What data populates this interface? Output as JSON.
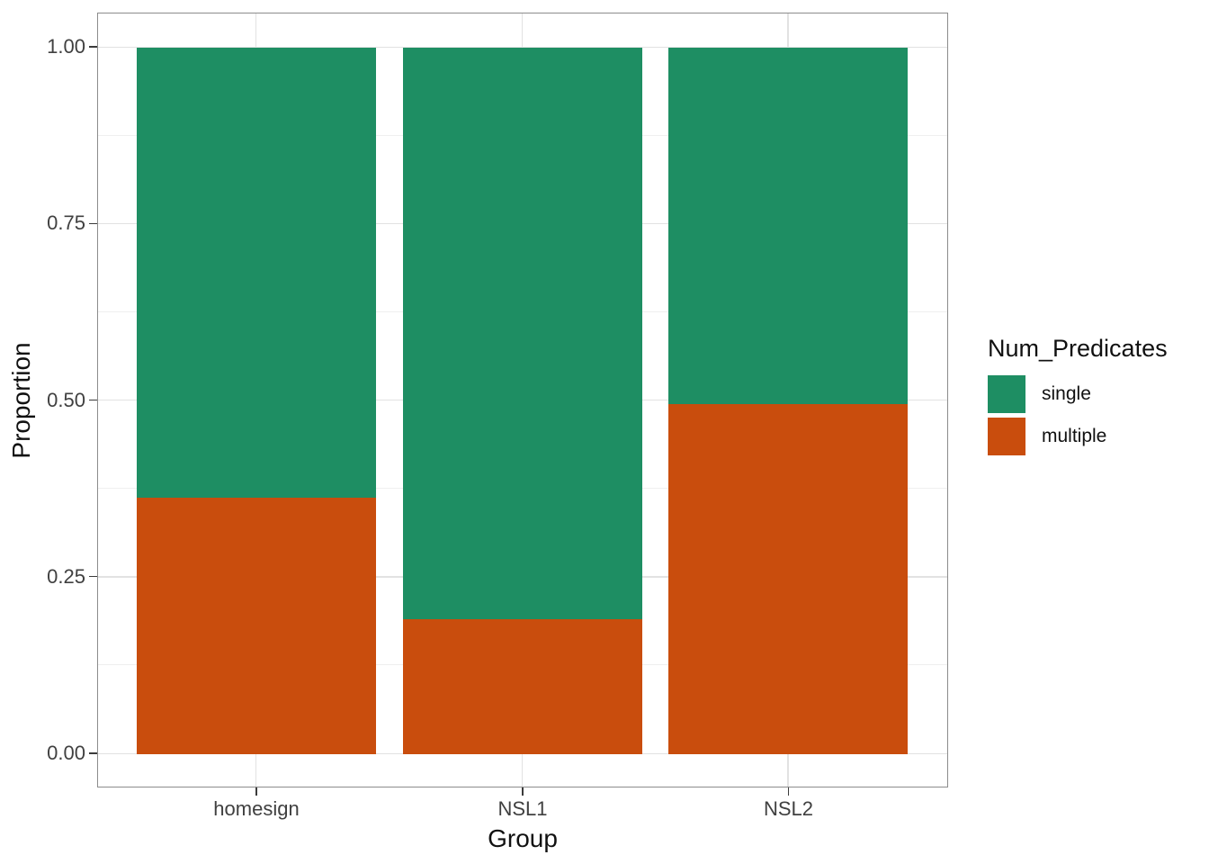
{
  "chart_data": {
    "type": "bar",
    "stacked": true,
    "orientation": "vertical",
    "title": "",
    "xlabel": "Group",
    "ylabel": "Proportion",
    "categories": [
      "homesign",
      "NSL1",
      "NSL2"
    ],
    "series": [
      {
        "name": "single",
        "color": "#1e8e63",
        "values": [
          0.637,
          0.809,
          0.505
        ]
      },
      {
        "name": "multiple",
        "color": "#c94d0d",
        "values": [
          0.363,
          0.191,
          0.495
        ]
      }
    ],
    "ylim": [
      0,
      1
    ],
    "ytick_values": [
      0,
      0.25,
      0.5,
      0.75,
      1.0
    ],
    "ytick_labels": [
      "0.00",
      "0.25",
      "0.50",
      "0.75",
      "1.00"
    ],
    "yminor_values": [
      0.125,
      0.375,
      0.625,
      0.875
    ],
    "legend_title": "Num_Predicates",
    "legend_position": "right",
    "legend_entries": [
      "single",
      "multiple"
    ],
    "grid": "horizontal major+minor, vertical major at category centers",
    "panel_background": "#ffffff",
    "panel_border_color": "#8c8c8c",
    "major_grid_color": "#e2e2e2",
    "minor_grid_color": "#efefef"
  }
}
